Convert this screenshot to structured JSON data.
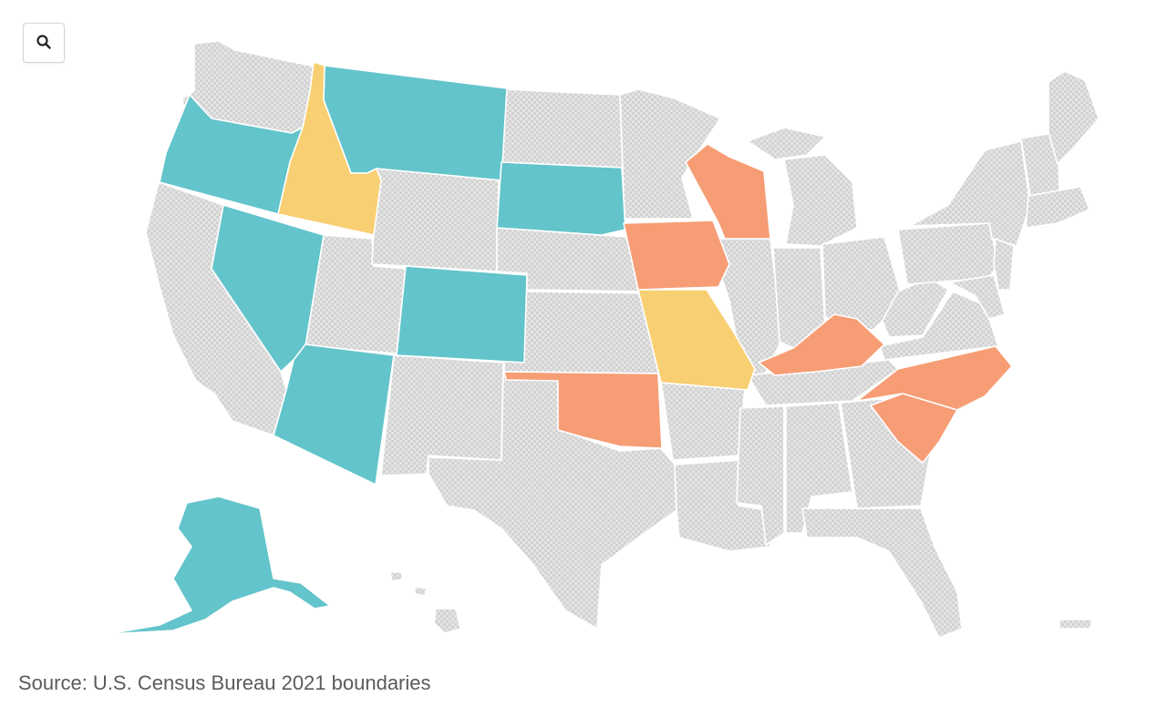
{
  "map": {
    "view": "United States by state",
    "source_note": "Source: U.S. Census Bureau 2021 boundaries",
    "no_data_color": "#dcdcdc",
    "zoom_icon": "search-icon",
    "categories": [
      {
        "id": "teal",
        "color": "#63c4cb"
      },
      {
        "id": "orange",
        "color": "#f79d75"
      },
      {
        "id": "yellow",
        "color": "#f8cf72"
      }
    ],
    "highlighted_states": [
      {
        "state": "Alaska",
        "category": "teal"
      },
      {
        "state": "Arizona",
        "category": "teal"
      },
      {
        "state": "Colorado",
        "category": "teal"
      },
      {
        "state": "Montana",
        "category": "teal"
      },
      {
        "state": "Nevada",
        "category": "teal"
      },
      {
        "state": "Oregon",
        "category": "teal"
      },
      {
        "state": "South Dakota",
        "category": "teal"
      },
      {
        "state": "Iowa",
        "category": "orange"
      },
      {
        "state": "Kentucky",
        "category": "orange"
      },
      {
        "state": "North Carolina",
        "category": "orange"
      },
      {
        "state": "Oklahoma",
        "category": "orange"
      },
      {
        "state": "South Carolina",
        "category": "orange"
      },
      {
        "state": "Wisconsin",
        "category": "orange"
      },
      {
        "state": "Idaho",
        "category": "yellow"
      },
      {
        "state": "Missouri",
        "category": "yellow"
      }
    ]
  }
}
